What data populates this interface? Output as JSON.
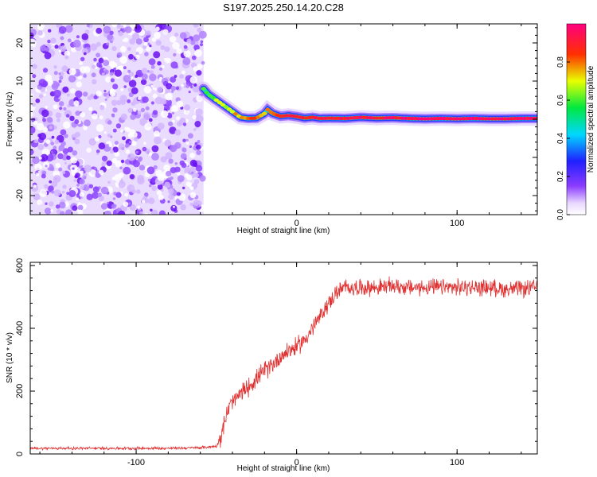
{
  "title": "S197.2025.250.14.20.C28",
  "chart_data": [
    {
      "type": "heatmap",
      "xlabel": "Height of straight line (km)",
      "ylabel": "Frequency (Hz)",
      "xlim": [
        -166,
        150
      ],
      "ylim": [
        -25,
        25
      ],
      "xticks": [
        -100,
        0,
        100
      ],
      "yticks": [
        20,
        10,
        0,
        -10,
        -20
      ],
      "colorbar": {
        "label": "Normalized spectral amplitude",
        "range": [
          0,
          1
        ],
        "ticks": [
          "0.0",
          "0.2",
          "0.4",
          "0.6",
          "0.8"
        ],
        "colormap": "rainbow (white-purple-blue-cyan-green-yellow-red-magenta)"
      },
      "noise_region_x": [
        -166,
        -58
      ],
      "ridge": {
        "x": [
          -58,
          -55,
          -50,
          -45,
          -40,
          -35,
          -30,
          -25,
          -20,
          -18,
          -15,
          -10,
          -5,
          0,
          5,
          10,
          15,
          20,
          30,
          40,
          50,
          60,
          70,
          80,
          90,
          100,
          110,
          120,
          130,
          140,
          150
        ],
        "frequency_hz": [
          8,
          6.5,
          5,
          3.5,
          2,
          0.5,
          0.2,
          0.3,
          1.5,
          2.5,
          1.5,
          0.8,
          1,
          0.7,
          0.3,
          0.5,
          0.2,
          0.3,
          0.2,
          0.5,
          0.3,
          0.4,
          0.2,
          0.1,
          0.2,
          0.1,
          0.2,
          0.1,
          0.1,
          0.2,
          0.2
        ],
        "amplitude": [
          0.55,
          0.6,
          0.65,
          0.7,
          0.72,
          0.75,
          0.8,
          0.85,
          0.7,
          0.75,
          0.8,
          0.85,
          0.9,
          0.88,
          0.9,
          0.92,
          0.95,
          0.9,
          0.92,
          0.93,
          0.9,
          0.92,
          0.95,
          0.97,
          0.95,
          0.97,
          0.96,
          0.97,
          0.98,
          0.97,
          0.98
        ]
      }
    },
    {
      "type": "line",
      "xlabel": "Height of straight line (km)",
      "ylabel": "SNR (10 * v/v)",
      "xlim": [
        -166,
        150
      ],
      "ylim": [
        0,
        610
      ],
      "xticks": [
        -100,
        0,
        100
      ],
      "yticks": [
        0,
        200,
        400,
        600
      ],
      "line_color": "#e03030",
      "series": [
        {
          "name": "SNR",
          "x": [
            -166,
            -140,
            -120,
            -100,
            -80,
            -60,
            -55,
            -50,
            -48,
            -45,
            -42,
            -40,
            -35,
            -30,
            -25,
            -20,
            -15,
            -10,
            -5,
            0,
            5,
            10,
            15,
            20,
            25,
            30,
            40,
            50,
            60,
            70,
            80,
            90,
            100,
            110,
            120,
            130,
            140,
            150
          ],
          "values": [
            18,
            18,
            18,
            18,
            18,
            20,
            22,
            25,
            45,
            100,
            150,
            165,
            190,
            215,
            240,
            265,
            285,
            310,
            330,
            340,
            365,
            400,
            440,
            480,
            515,
            530,
            530,
            530,
            535,
            530,
            530,
            530,
            530,
            530,
            530,
            525,
            525,
            530
          ]
        }
      ]
    }
  ]
}
